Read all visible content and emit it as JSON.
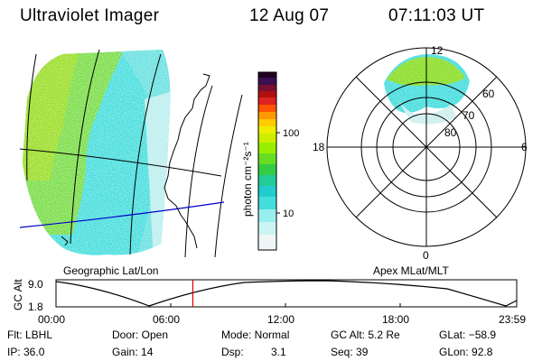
{
  "header": {
    "title": "Ultraviolet Imager",
    "date": "12 Aug 07",
    "time": "07:11:03 UT"
  },
  "colorbar": {
    "unit_label": "photon cm⁻²s⁻¹",
    "ticks": [
      "100",
      "10"
    ]
  },
  "geo_panel": {
    "caption": "Geographic Lat/Lon"
  },
  "polar_panel": {
    "caption": "Apex MLat/MLT",
    "mlt_labels": [
      "12",
      "18",
      "6",
      "0"
    ],
    "lat_labels": [
      "60",
      "70",
      "80"
    ]
  },
  "altitude_track": {
    "axis_title": "GC Alt",
    "y_ticks": [
      "9.0",
      "1.8"
    ],
    "x_ticks": [
      "00:00",
      "06:00",
      "12:00",
      "18:00",
      "23:59"
    ],
    "current_time_fraction": 0.297
  },
  "footer": {
    "flt": "Flt: LBHL",
    "door": "Door: Open",
    "mode": "Mode: Normal",
    "gc_alt": "GC Alt: 5.2 Re",
    "glat": "GLat: −58.9",
    "ip": "IP: 36.0",
    "gain": "Gain: 14",
    "dsp_label": "Dsp:",
    "dsp_value": "3.1",
    "seq": "Seq: 39",
    "glon": "GLon: 92.8"
  },
  "colors": {
    "aurora_green": "#66dd22",
    "aurora_cyan": "#33dddd",
    "track_marker": "#dd0000",
    "lat_line": "#0000cc"
  }
}
